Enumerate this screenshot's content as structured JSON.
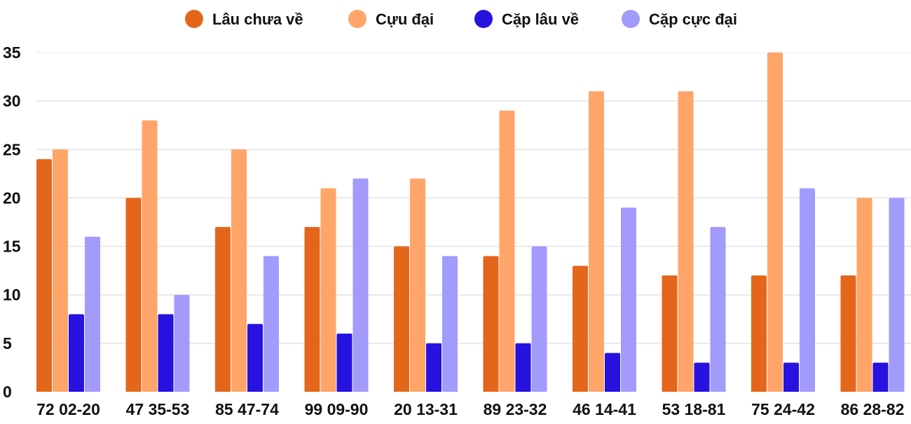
{
  "chart_data": {
    "type": "bar",
    "title": "",
    "xlabel": "",
    "ylabel": "",
    "ylim": [
      0,
      35
    ],
    "yticks": [
      0,
      5,
      10,
      15,
      20,
      25,
      30,
      35
    ],
    "grid": true,
    "legend_position": "top",
    "categories": [
      "72 02-20",
      "47 35-53",
      "85 47-74",
      "99 09-90",
      "20 13-31",
      "89 23-32",
      "46 14-41",
      "53 18-81",
      "75 24-42",
      "86 28-82"
    ],
    "series": [
      {
        "name": "Lâu chưa về",
        "color": "#e4661a",
        "values": [
          24,
          20,
          17,
          17,
          15,
          14,
          13,
          12,
          12,
          12
        ]
      },
      {
        "name": "Cựu đại",
        "color": "#ffa569",
        "values": [
          25,
          28,
          25,
          21,
          22,
          29,
          31,
          31,
          35,
          20
        ]
      },
      {
        "name": "Cặp lâu về",
        "color": "#2712e0",
        "values": [
          8,
          8,
          7,
          6,
          5,
          5,
          4,
          3,
          3,
          3
        ]
      },
      {
        "name": "Cặp cực đại",
        "color": "#a29bfc",
        "values": [
          16,
          10,
          14,
          22,
          14,
          15,
          19,
          17,
          21,
          20
        ]
      }
    ]
  }
}
